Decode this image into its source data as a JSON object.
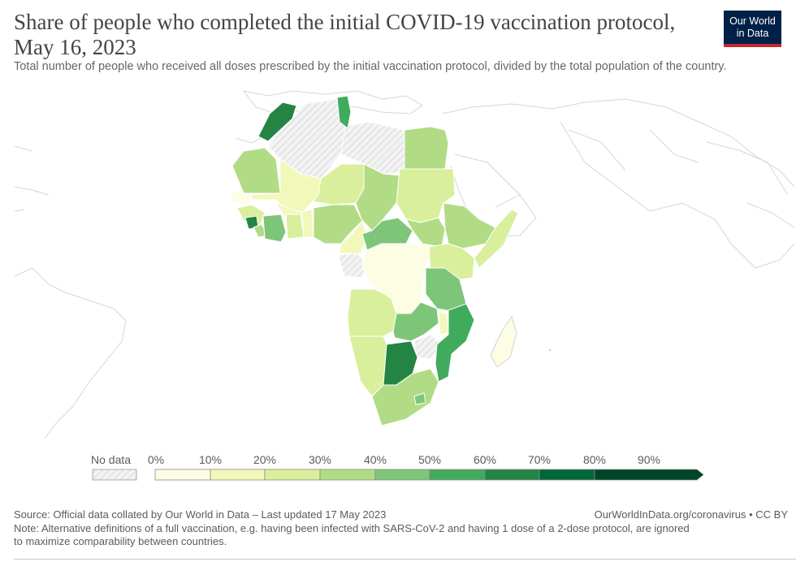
{
  "header": {
    "title_line1": "Share of people who completed the initial COVID-19 vaccination protocol,",
    "title_line2": "May 16, 2023",
    "subtitle": "Total number of people who received all doses prescribed by the initial vaccination protocol, divided by the total population of the country.",
    "logo_line1": "Our World",
    "logo_line2": "in Data"
  },
  "colors": {
    "bin0": "#fcfde3",
    "bin1": "#f2f8b9",
    "bin2": "#d9ef9c",
    "bin3": "#b1dc85",
    "bin4": "#7dc679",
    "bin5": "#41ab5d",
    "bin6": "#238443",
    "bin7": "#006837",
    "bin8": "#004529",
    "border": "#ffffff",
    "outline": "#d3d3d3",
    "no_data": "#e8e8e8"
  },
  "legend": {
    "no_data_label": "No data",
    "ticks": [
      "0%",
      "10%",
      "20%",
      "30%",
      "40%",
      "50%",
      "60%",
      "70%",
      "80%",
      "90%"
    ]
  },
  "footer": {
    "source": "Source: Official data collated by Our World in Data – Last updated 17 May 2023",
    "credit": "OurWorldInData.org/coronavirus • CC BY",
    "note_line1": "Note: Alternative definitions of a full vaccination, e.g. having been infected with SARS-CoV-2 and having 1 dose of a 2-dose protocol, are ignored",
    "note_line2": "to maximize comparability between countries."
  }
}
